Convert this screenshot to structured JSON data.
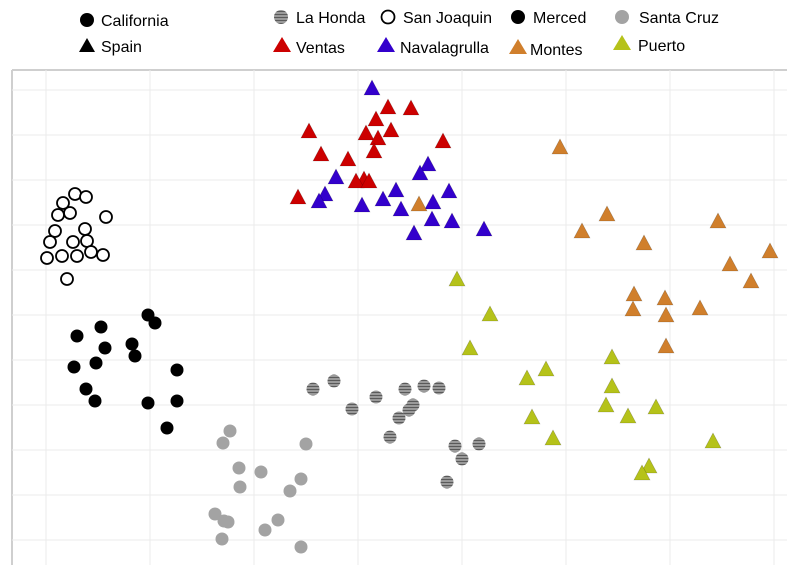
{
  "chart_data": {
    "type": "scatter",
    "title": "",
    "xlabel": "",
    "ylabel": "",
    "grid": true,
    "legend_position": "top",
    "legend_shapes": [
      {
        "label": "California",
        "shape": "circle"
      },
      {
        "label": "Spain",
        "shape": "triangle"
      }
    ],
    "series": [
      {
        "name": "La Honda",
        "shape": "circle",
        "fill": "hatched",
        "color": "#888888",
        "points": [
          [
            313,
            389
          ],
          [
            334,
            381
          ],
          [
            352,
            409
          ],
          [
            376,
            397
          ],
          [
            390,
            437
          ],
          [
            399,
            418
          ],
          [
            405,
            389
          ],
          [
            409,
            410
          ],
          [
            413,
            405
          ],
          [
            424,
            386
          ],
          [
            439,
            388
          ],
          [
            455,
            446
          ],
          [
            462,
            459
          ],
          [
            479,
            444
          ],
          [
            447,
            482
          ]
        ]
      },
      {
        "name": "San Joaquin",
        "shape": "circle",
        "fill": "open",
        "color": "#000000",
        "points": [
          [
            75,
            194
          ],
          [
            86,
            197
          ],
          [
            63,
            203
          ],
          [
            70,
            213
          ],
          [
            58,
            215
          ],
          [
            106,
            217
          ],
          [
            55,
            231
          ],
          [
            85,
            229
          ],
          [
            50,
            242
          ],
          [
            87,
            241
          ],
          [
            73,
            242
          ],
          [
            47,
            258
          ],
          [
            62,
            256
          ],
          [
            77,
            256
          ],
          [
            103,
            255
          ],
          [
            91,
            252
          ],
          [
            67,
            279
          ]
        ]
      },
      {
        "name": "Merced",
        "shape": "circle",
        "fill": "solid",
        "color": "#000000",
        "points": [
          [
            148,
            315
          ],
          [
            155,
            323
          ],
          [
            77,
            336
          ],
          [
            101,
            327
          ],
          [
            132,
            344
          ],
          [
            135,
            356
          ],
          [
            105,
            348
          ],
          [
            96,
            363
          ],
          [
            74,
            367
          ],
          [
            177,
            370
          ],
          [
            86,
            389
          ],
          [
            95,
            401
          ],
          [
            148,
            403
          ],
          [
            177,
            401
          ],
          [
            167,
            428
          ]
        ]
      },
      {
        "name": "Santa Cruz",
        "shape": "circle",
        "fill": "solid",
        "color": "#a3a3a3",
        "points": [
          [
            230,
            431
          ],
          [
            223,
            443
          ],
          [
            306,
            444
          ],
          [
            239,
            468
          ],
          [
            261,
            472
          ],
          [
            301,
            479
          ],
          [
            240,
            487
          ],
          [
            290,
            491
          ],
          [
            215,
            514
          ],
          [
            224,
            521
          ],
          [
            228,
            522
          ],
          [
            278,
            520
          ],
          [
            265,
            530
          ],
          [
            222,
            539
          ],
          [
            301,
            547
          ]
        ]
      },
      {
        "name": "Ventas",
        "shape": "triangle",
        "color": "#cc0000",
        "points": [
          [
            388,
            108
          ],
          [
            411,
            109
          ],
          [
            376,
            120
          ],
          [
            391,
            131
          ],
          [
            309,
            132
          ],
          [
            366,
            134
          ],
          [
            378,
            139
          ],
          [
            443,
            142
          ],
          [
            374,
            152
          ],
          [
            321,
            155
          ],
          [
            348,
            160
          ],
          [
            364,
            180
          ],
          [
            356,
            182
          ],
          [
            369,
            182
          ],
          [
            298,
            198
          ]
        ]
      },
      {
        "name": "Navalagrulla",
        "shape": "triangle",
        "color": "#3300cc",
        "points": [
          [
            372,
            89
          ],
          [
            428,
            165
          ],
          [
            336,
            178
          ],
          [
            420,
            174
          ],
          [
            325,
            195
          ],
          [
            396,
            191
          ],
          [
            449,
            192
          ],
          [
            383,
            200
          ],
          [
            433,
            203
          ],
          [
            362,
            206
          ],
          [
            401,
            210
          ],
          [
            319,
            202
          ],
          [
            432,
            220
          ],
          [
            452,
            222
          ],
          [
            414,
            234
          ],
          [
            484,
            230
          ]
        ]
      },
      {
        "name": "Montes",
        "shape": "triangle",
        "color": "#d07f2c",
        "points": [
          [
            560,
            148
          ],
          [
            419,
            205
          ],
          [
            607,
            215
          ],
          [
            582,
            232
          ],
          [
            718,
            222
          ],
          [
            644,
            244
          ],
          [
            770,
            252
          ],
          [
            730,
            265
          ],
          [
            751,
            282
          ],
          [
            634,
            295
          ],
          [
            665,
            299
          ],
          [
            633,
            310
          ],
          [
            700,
            309
          ],
          [
            666,
            316
          ],
          [
            666,
            347
          ]
        ]
      },
      {
        "name": "Puerto",
        "shape": "triangle",
        "color": "#b5c21a",
        "points": [
          [
            457,
            280
          ],
          [
            490,
            315
          ],
          [
            470,
            349
          ],
          [
            612,
            358
          ],
          [
            546,
            370
          ],
          [
            527,
            379
          ],
          [
            612,
            387
          ],
          [
            606,
            406
          ],
          [
            656,
            408
          ],
          [
            532,
            418
          ],
          [
            628,
            417
          ],
          [
            553,
            439
          ],
          [
            713,
            442
          ],
          [
            649,
            467
          ],
          [
            642,
            474
          ]
        ]
      }
    ]
  }
}
